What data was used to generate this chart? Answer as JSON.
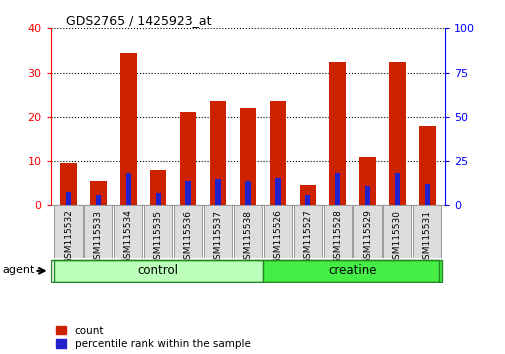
{
  "title": "GDS2765 / 1425923_at",
  "samples": [
    "GSM115532",
    "GSM115533",
    "GSM115534",
    "GSM115535",
    "GSM115536",
    "GSM115537",
    "GSM115538",
    "GSM115526",
    "GSM115527",
    "GSM115528",
    "GSM115529",
    "GSM115530",
    "GSM115531"
  ],
  "count_values": [
    9.5,
    5.5,
    34.5,
    8.0,
    21.0,
    23.5,
    22.0,
    23.5,
    4.5,
    32.5,
    11.0,
    32.5,
    18.0
  ],
  "percentile_values": [
    7.5,
    6.0,
    18.0,
    7.0,
    14.0,
    15.0,
    14.0,
    15.5,
    6.0,
    18.0,
    11.0,
    18.0,
    12.0
  ],
  "groups": [
    "control",
    "control",
    "control",
    "control",
    "control",
    "control",
    "control",
    "creatine",
    "creatine",
    "creatine",
    "creatine",
    "creatine",
    "creatine"
  ],
  "group_colors": {
    "control": "#bbffbb",
    "creatine": "#44ee44"
  },
  "bar_color": "#cc2200",
  "pct_color": "#2222cc",
  "ylim_left": [
    0,
    40
  ],
  "ylim_right": [
    0,
    100
  ],
  "yticks_left": [
    0,
    10,
    20,
    30,
    40
  ],
  "yticks_right": [
    0,
    25,
    50,
    75,
    100
  ],
  "background_color": "#ffffff",
  "plot_bg_color": "#ffffff",
  "legend_count": "count",
  "legend_pct": "percentile rank within the sample",
  "bar_width": 0.55,
  "pct_bar_width": 0.18
}
